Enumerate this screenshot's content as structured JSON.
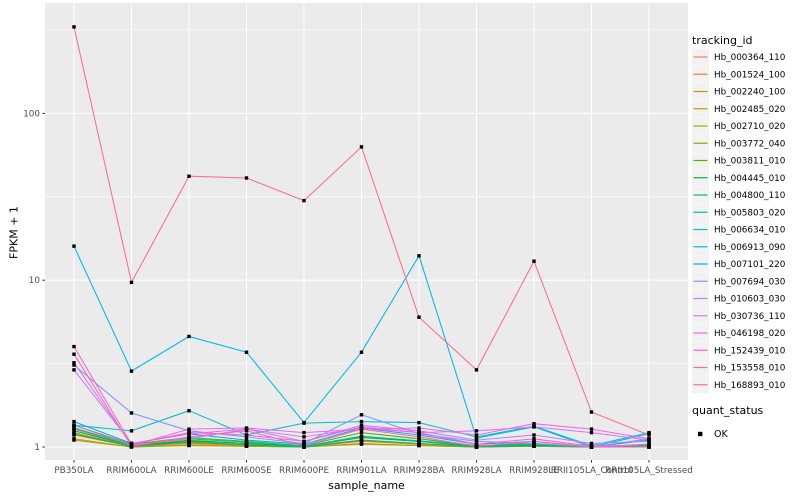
{
  "figure": {
    "panel_bg": "#EBEBEB",
    "grid_color": "#FFFFFF",
    "axis_text_color": "#4D4D4D",
    "tick_color": "#333333",
    "marker_color": "#000000",
    "legend_key_bg": "#F2F2F2"
  },
  "chart_data": {
    "type": "line",
    "title": "",
    "xlabel": "sample_name",
    "ylabel": "FPKM + 1",
    "yscale": "log10",
    "ylim": [
      0.95,
      380
    ],
    "yticks": [
      1,
      10,
      100
    ],
    "ytick_labels": [
      "1",
      "10",
      "100"
    ],
    "yminor": [
      3.1623,
      31.623,
      316.23
    ],
    "grid": true,
    "legend_position": "right",
    "legend_title": "tracking_id",
    "legend2": {
      "title": "quant_status",
      "items": [
        {
          "label": "OK",
          "marker": "filled-square",
          "color": "#000000"
        }
      ]
    },
    "marker": "filled-square",
    "categories": [
      "PB350LA",
      "RRIM600LA",
      "RRIM600LE",
      "RRIM600SE",
      "RRIM600PE",
      "RRIM901LA",
      "RRIM928BA",
      "RRIM928LA",
      "RRIM928LE",
      "RRII105LA_Control",
      "RRII105LA_Stressed"
    ],
    "series": [
      {
        "name": "Hb_000364_110",
        "color": "#F8766D",
        "values": [
          1.28,
          1.02,
          1.08,
          1.03,
          1.01,
          1.1,
          1.05,
          1.01,
          1.02,
          1.0,
          1.01
        ]
      },
      {
        "name": "Hb_001524_100",
        "color": "#E88526",
        "values": [
          1.18,
          1.01,
          1.05,
          1.02,
          1.0,
          1.08,
          1.04,
          1.0,
          1.02,
          1.0,
          1.0
        ]
      },
      {
        "name": "Hb_002240_100",
        "color": "#D39200",
        "values": [
          1.12,
          1.0,
          1.03,
          1.01,
          1.0,
          1.05,
          1.02,
          1.0,
          1.01,
          1.0,
          1.0
        ]
      },
      {
        "name": "Hb_002485_020",
        "color": "#BF9D00",
        "values": [
          1.22,
          1.01,
          1.06,
          1.03,
          1.0,
          1.09,
          1.04,
          1.0,
          1.02,
          1.0,
          1.01
        ]
      },
      {
        "name": "Hb_002710_020",
        "color": "#A4A500",
        "values": [
          1.1,
          1.0,
          1.02,
          1.01,
          1.0,
          1.04,
          1.02,
          1.0,
          1.01,
          1.0,
          1.0
        ]
      },
      {
        "name": "Hb_003772_040",
        "color": "#83AB00",
        "values": [
          1.3,
          1.02,
          1.1,
          1.05,
          1.01,
          1.15,
          1.08,
          1.01,
          1.04,
          1.0,
          1.02
        ]
      },
      {
        "name": "Hb_003811_010",
        "color": "#57B000",
        "values": [
          1.35,
          1.04,
          1.14,
          1.08,
          1.02,
          1.22,
          1.12,
          1.02,
          1.05,
          1.0,
          1.03
        ]
      },
      {
        "name": "Hb_004445_010",
        "color": "#00B440",
        "values": [
          1.25,
          1.02,
          1.09,
          1.05,
          1.01,
          1.14,
          1.08,
          1.01,
          1.03,
          1.0,
          1.02
        ]
      },
      {
        "name": "Hb_004800_110",
        "color": "#00BA79",
        "values": [
          1.2,
          1.01,
          1.07,
          1.03,
          1.0,
          1.1,
          1.05,
          1.0,
          1.02,
          1.0,
          1.01
        ]
      },
      {
        "name": "Hb_005803_020",
        "color": "#00BEA4",
        "values": [
          1.3,
          1.03,
          1.12,
          1.07,
          1.01,
          1.16,
          1.09,
          1.02,
          1.04,
          1.0,
          1.04
        ]
      },
      {
        "name": "Hb_006634_010",
        "color": "#00BECC",
        "values": [
          1.35,
          1.25,
          1.65,
          1.18,
          1.39,
          1.42,
          1.4,
          1.15,
          1.33,
          1.02,
          1.22
        ]
      },
      {
        "name": "Hb_006913_090",
        "color": "#00B8E9",
        "values": [
          16.0,
          2.85,
          4.6,
          3.7,
          1.4,
          3.7,
          14.0,
          1.13,
          1.32,
          1.0,
          1.2
        ]
      },
      {
        "name": "Hb_007101_220",
        "color": "#00ABFD",
        "values": [
          1.42,
          1.05,
          1.2,
          1.1,
          1.04,
          1.3,
          1.18,
          1.04,
          1.08,
          1.0,
          1.1
        ]
      },
      {
        "name": "Hb_007694_030",
        "color": "#7C96FF",
        "values": [
          3.1,
          1.6,
          1.25,
          1.15,
          1.05,
          1.56,
          1.2,
          1.08,
          1.05,
          1.0,
          1.12
        ]
      },
      {
        "name": "Hb_010603_030",
        "color": "#B383FF",
        "values": [
          3.2,
          1.03,
          1.12,
          1.28,
          1.08,
          1.35,
          1.25,
          1.1,
          1.18,
          1.05,
          1.08
        ]
      },
      {
        "name": "Hb_030736_110",
        "color": "#D874FC",
        "values": [
          2.9,
          1.05,
          1.2,
          1.28,
          1.15,
          1.3,
          1.22,
          1.25,
          1.32,
          1.22,
          1.1
        ]
      },
      {
        "name": "Hb_046198_020",
        "color": "#EF67EB",
        "values": [
          1.35,
          1.02,
          1.28,
          1.3,
          1.22,
          1.28,
          1.3,
          1.18,
          1.38,
          1.28,
          1.12
        ]
      },
      {
        "name": "Hb_152439_010",
        "color": "#FD61D1",
        "values": [
          4.0,
          1.04,
          1.22,
          1.18,
          1.08,
          1.32,
          1.22,
          1.04,
          1.12,
          1.01,
          1.03
        ]
      },
      {
        "name": "Hb_153558_010",
        "color": "#FF62B0",
        "values": [
          3.6,
          1.01,
          1.15,
          1.25,
          1.02,
          1.28,
          1.15,
          1.01,
          1.08,
          1.0,
          1.0
        ]
      },
      {
        "name": "Hb_168893_010",
        "color": "#FF6C8F",
        "values": [
          330,
          9.7,
          42,
          41,
          30,
          63,
          6.0,
          2.9,
          13,
          1.62,
          1.18
        ]
      }
    ]
  }
}
